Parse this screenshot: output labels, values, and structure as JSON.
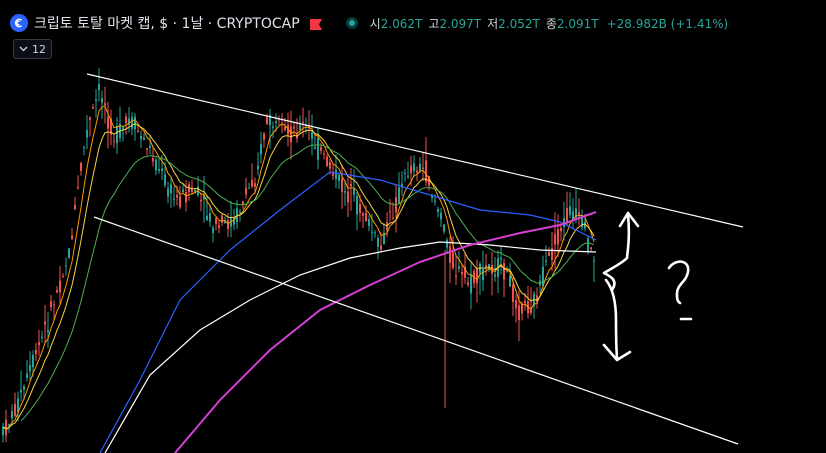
{
  "header": {
    "symbol_icon": "crypto-cap-icon",
    "title": "크립토 토탈 마켓 캡, $ · 1날 · CRYPTOCAP",
    "flag_icon": "flag-icon",
    "status_icon": "market-status-icon",
    "ohlc": {
      "open_label": "시",
      "open": "2.062T",
      "high_label": "고",
      "high": "2.097T",
      "low_label": "저",
      "low": "2.052T",
      "close_label": "종",
      "close": "2.091T",
      "change": "+28.982B (+1.41%)"
    }
  },
  "indicators_toggle": {
    "icon": "chevron-down-icon",
    "count": "12"
  },
  "annotation": {
    "text": "?"
  },
  "colors": {
    "background": "#000000",
    "candle_up": "#26a69a",
    "candle_down": "#ef5350",
    "ma_orange": "#ff9800",
    "ma_yellow": "#f5d547",
    "ma_green": "#4caf50",
    "ma_blue": "#2962ff",
    "ma_white": "#ffffff",
    "ma_purple": "#d43fd4",
    "accent_blue": "#2962ff"
  }
}
